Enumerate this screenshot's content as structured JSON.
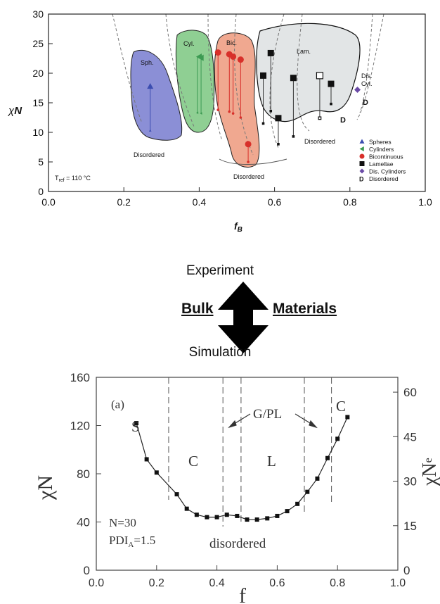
{
  "colors": {
    "sph_fill": "#8b8fd6",
    "cyl_fill": "#8fcf93",
    "bic_fill": "#f0a890",
    "lam_fill": "#e2e5e6",
    "blue": "#3b4db0",
    "green": "#3c9a52",
    "red": "#d8302a",
    "purple": "#6a4aa6",
    "black": "#111111"
  },
  "top": {
    "phase_labels": {
      "sph": "Sph.",
      "cyl": "Cyl.",
      "bic": "Bic.",
      "lam": "Lam.",
      "dis": "Dis.",
      "dis2": "Cyl.",
      "disordered1": "Disordered",
      "disordered2": "Disordered",
      "disordered3": "Disordered"
    },
    "d_mark1": "D",
    "d_mark2": "D",
    "tref_main": "T",
    "tref_sub": "ref",
    "tref_rest": " = 110 °C",
    "legend": [
      {
        "label": "Spheres",
        "marker": "triangle-up",
        "color": "#3b4db0"
      },
      {
        "label": "Cylinders",
        "marker": "triangle-left",
        "color": "#3c9a52"
      },
      {
        "label": "Bicontinuous",
        "marker": "circle",
        "color": "#d8302a"
      },
      {
        "label": "Lamellae",
        "marker": "square",
        "color": "#111111"
      },
      {
        "label": "Dis. Cylinders",
        "marker": "diamond",
        "color": "#6a4aa6"
      },
      {
        "label": "Disordered",
        "marker": "D",
        "color": "#111111"
      }
    ]
  },
  "middle": {
    "experiment": "Experiment",
    "simulation": "Simulation",
    "bulk": "Bulk",
    "materials": "Materials"
  },
  "bottom": {
    "panel_label": "(a)",
    "region_labels": {
      "s": "S",
      "c1": "C",
      "gpl": "G/PL",
      "l": "L",
      "c2": "C",
      "disordered": "disordered"
    },
    "n_text": "N=30",
    "pdi_main": "PDI",
    "pdi_sub": "A",
    "pdi_rest": "=1.5",
    "right_axis_label": "χN",
    "right_axis_sub": "e",
    "right_ticks": [
      "0",
      "15",
      "30",
      "45",
      "60"
    ]
  },
  "chart_data": [
    {
      "type": "scatter",
      "xlabel": "f_B",
      "ylabel": "χN",
      "xlim": [
        0.0,
        1.0
      ],
      "ylim": [
        0,
        30
      ],
      "xticks": [
        "0.0",
        "0.2",
        "0.4",
        "0.6",
        "0.8",
        "1.0"
      ],
      "yticks": [
        "0",
        "5",
        "10",
        "15",
        "20",
        "25",
        "30"
      ],
      "series": [
        {
          "name": "Spheres",
          "marker": "triangle-up",
          "points": [
            [
              0.27,
              17.8
            ]
          ],
          "ranges": [
            [
              0.27,
              10.3,
              17.8
            ]
          ]
        },
        {
          "name": "Cylinders",
          "marker": "triangle-left",
          "points": [
            [
              0.4,
              22.8
            ],
            [
              0.405,
              22.6
            ]
          ],
          "ranges": [
            [
              0.395,
              13.3,
              22.8
            ],
            [
              0.405,
              13.2,
              22.6
            ]
          ]
        },
        {
          "name": "Bicontinuous",
          "marker": "circle",
          "points": [
            [
              0.45,
              23.5
            ],
            [
              0.48,
              23.2
            ],
            [
              0.49,
              22.8
            ],
            [
              0.51,
              22.3
            ],
            [
              0.53,
              8.0
            ]
          ],
          "ranges": [
            [
              0.45,
              13.8,
              23.5
            ],
            [
              0.48,
              13.5,
              23.2
            ],
            [
              0.49,
              13.2,
              22.8
            ],
            [
              0.51,
              12.5,
              22.3
            ],
            [
              0.53,
              5.0,
              8.0
            ]
          ]
        },
        {
          "name": "Lamellae",
          "marker": "square",
          "points": [
            [
              0.57,
              19.6
            ],
            [
              0.59,
              23.4
            ],
            [
              0.61,
              12.4
            ],
            [
              0.65,
              19.2
            ],
            [
              0.75,
              18.2
            ]
          ],
          "ranges": [
            [
              0.57,
              11.5,
              19.6
            ],
            [
              0.59,
              13.6,
              23.4
            ],
            [
              0.61,
              8.0,
              12.4
            ],
            [
              0.65,
              9.3,
              19.2
            ],
            [
              0.75,
              14.8,
              18.2
            ]
          ]
        },
        {
          "name": "Lamellae (open)",
          "marker": "square-open",
          "points": [
            [
              0.72,
              19.6
            ]
          ],
          "ranges": [
            [
              0.72,
              12.4,
              19.6
            ]
          ]
        },
        {
          "name": "Dis. Cylinders",
          "marker": "diamond",
          "points": [
            [
              0.82,
              17.2
            ]
          ]
        }
      ]
    },
    {
      "type": "line",
      "xlabel": "f",
      "ylabel": "χN",
      "xlim": [
        0.0,
        1.0
      ],
      "ylim": [
        0,
        160
      ],
      "xticks": [
        "0.0",
        "0.2",
        "0.4",
        "0.6",
        "0.8",
        "1.0"
      ],
      "yticks": [
        "0",
        "40",
        "80",
        "120",
        "160"
      ],
      "phase_boundaries_f": [
        0.24,
        0.42,
        0.48,
        0.69,
        0.78
      ],
      "x": [
        0.133,
        0.167,
        0.2,
        0.267,
        0.3,
        0.333,
        0.367,
        0.4,
        0.433,
        0.467,
        0.5,
        0.533,
        0.567,
        0.6,
        0.633,
        0.667,
        0.7,
        0.733,
        0.767,
        0.8,
        0.833
      ],
      "values": [
        122,
        92,
        81,
        63,
        51,
        46,
        44,
        44,
        46,
        45,
        42,
        42,
        43,
        45,
        49,
        55,
        65,
        76,
        93,
        109,
        127
      ]
    }
  ]
}
